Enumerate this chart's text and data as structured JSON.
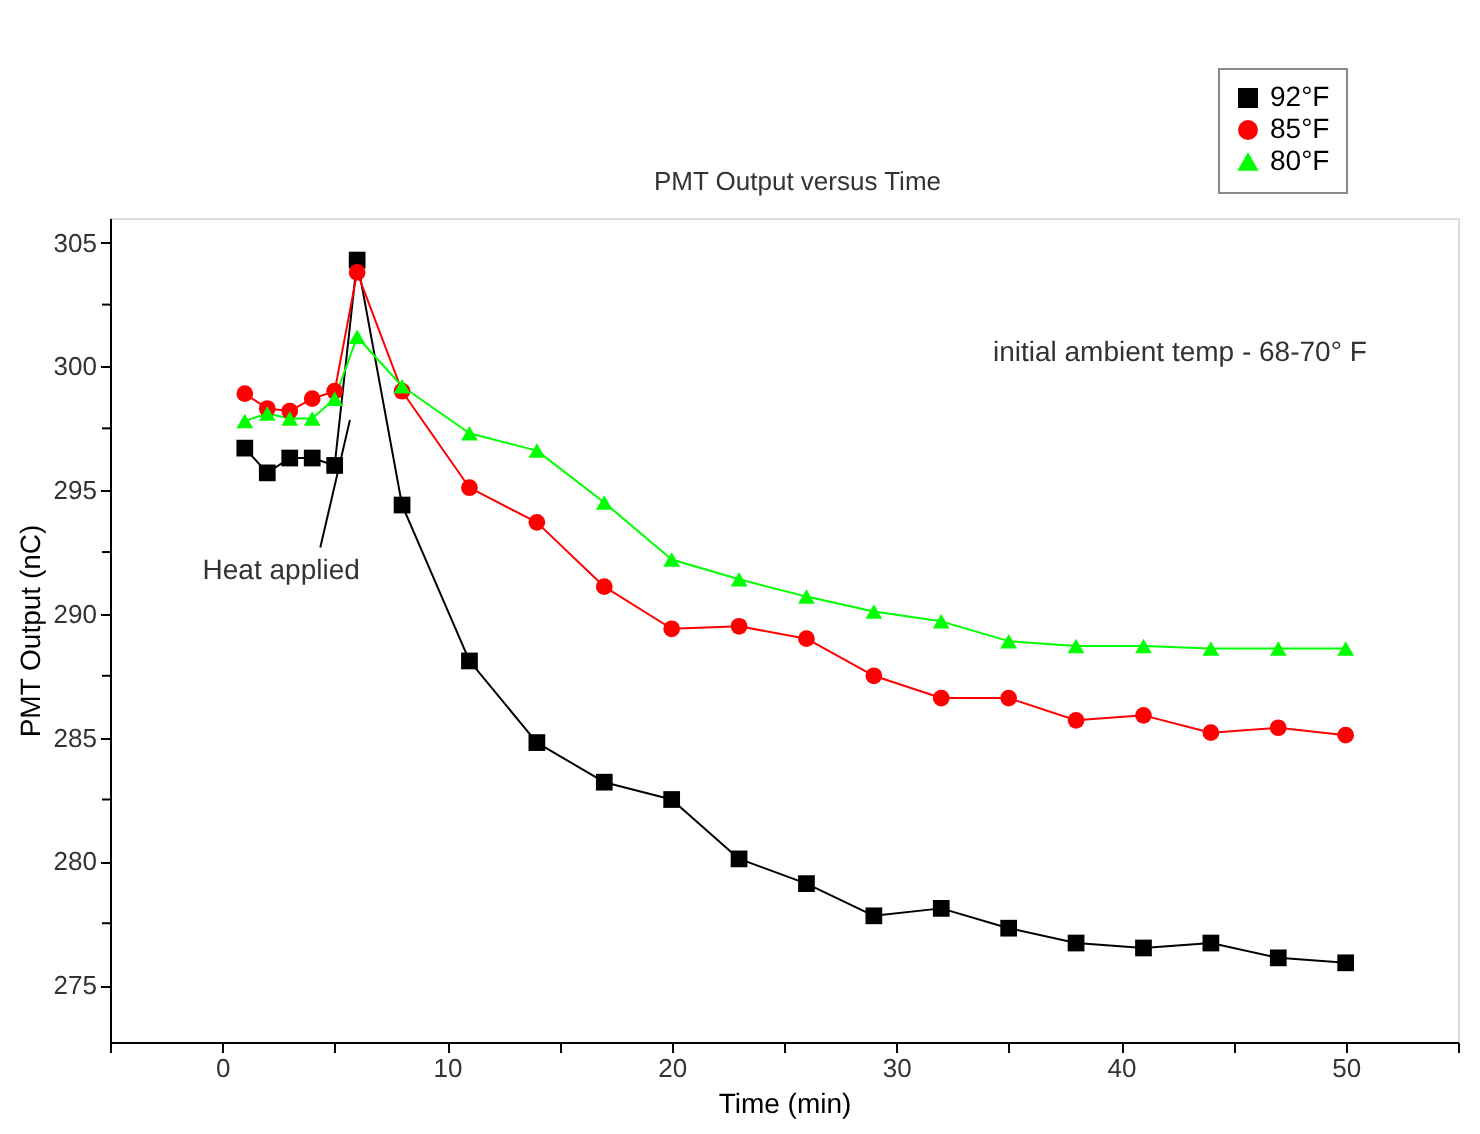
{
  "chart_data": {
    "type": "line",
    "title": "PMT Output versus Time",
    "xlabel": "Time (min)",
    "ylabel": "PMT Output (nC)",
    "x": [
      1,
      2,
      3,
      4,
      5,
      6,
      8,
      11,
      14,
      17,
      20,
      23,
      26,
      29,
      32,
      35,
      38,
      41,
      44,
      47,
      50
    ],
    "series": [
      {
        "name": "92°F",
        "color": "#000000",
        "marker": "square",
        "values": [
          296.7,
          295.7,
          296.3,
          296.3,
          296.0,
          304.3,
          294.4,
          288.1,
          284.8,
          283.2,
          282.5,
          280.1,
          279.1,
          277.8,
          278.1,
          277.3,
          276.7,
          276.5,
          276.7,
          276.1,
          275.9
        ]
      },
      {
        "name": "85°F",
        "color": "#ff0000",
        "marker": "circle",
        "values": [
          298.9,
          298.3,
          298.2,
          298.7,
          299.0,
          303.8,
          299.0,
          295.1,
          293.7,
          291.1,
          289.4,
          289.5,
          289.0,
          287.5,
          286.6,
          286.6,
          285.7,
          285.9,
          285.2,
          285.4,
          285.1
        ]
      },
      {
        "name": "80°F",
        "color": "#00ff00",
        "marker": "triangle",
        "values": [
          297.8,
          298.1,
          297.9,
          297.9,
          298.7,
          301.2,
          299.2,
          297.3,
          296.6,
          294.5,
          292.2,
          291.4,
          290.7,
          290.1,
          289.7,
          288.9,
          288.7,
          288.7,
          288.6,
          288.6,
          288.6
        ]
      }
    ],
    "xlim": [
      -5,
      55
    ],
    "ylim": [
      272.7,
      306
    ],
    "xticks": [
      {
        "value": -5,
        "label": null
      },
      0,
      {
        "value": 5,
        "label": null
      },
      10,
      {
        "value": 15,
        "label": null
      },
      20,
      {
        "value": 25,
        "label": null
      },
      30,
      {
        "value": 35,
        "label": null
      },
      40,
      {
        "value": 45,
        "label": null
      },
      50,
      {
        "value": 55,
        "label": null
      }
    ],
    "yticks": [
      275,
      {
        "value": 277.5,
        "label": null
      },
      280,
      {
        "value": 282.5,
        "label": null
      },
      285,
      {
        "value": 287.5,
        "label": null
      },
      290,
      {
        "value": 292.5,
        "label": null
      },
      295,
      {
        "value": 297.5,
        "label": null
      },
      300,
      {
        "value": 302.5,
        "label": null
      },
      305
    ],
    "annotations": [
      "Heat applied",
      "initial ambient temp - 68-70° F"
    ],
    "legend": "top right",
    "grid": false,
    "line_style": "solid"
  }
}
